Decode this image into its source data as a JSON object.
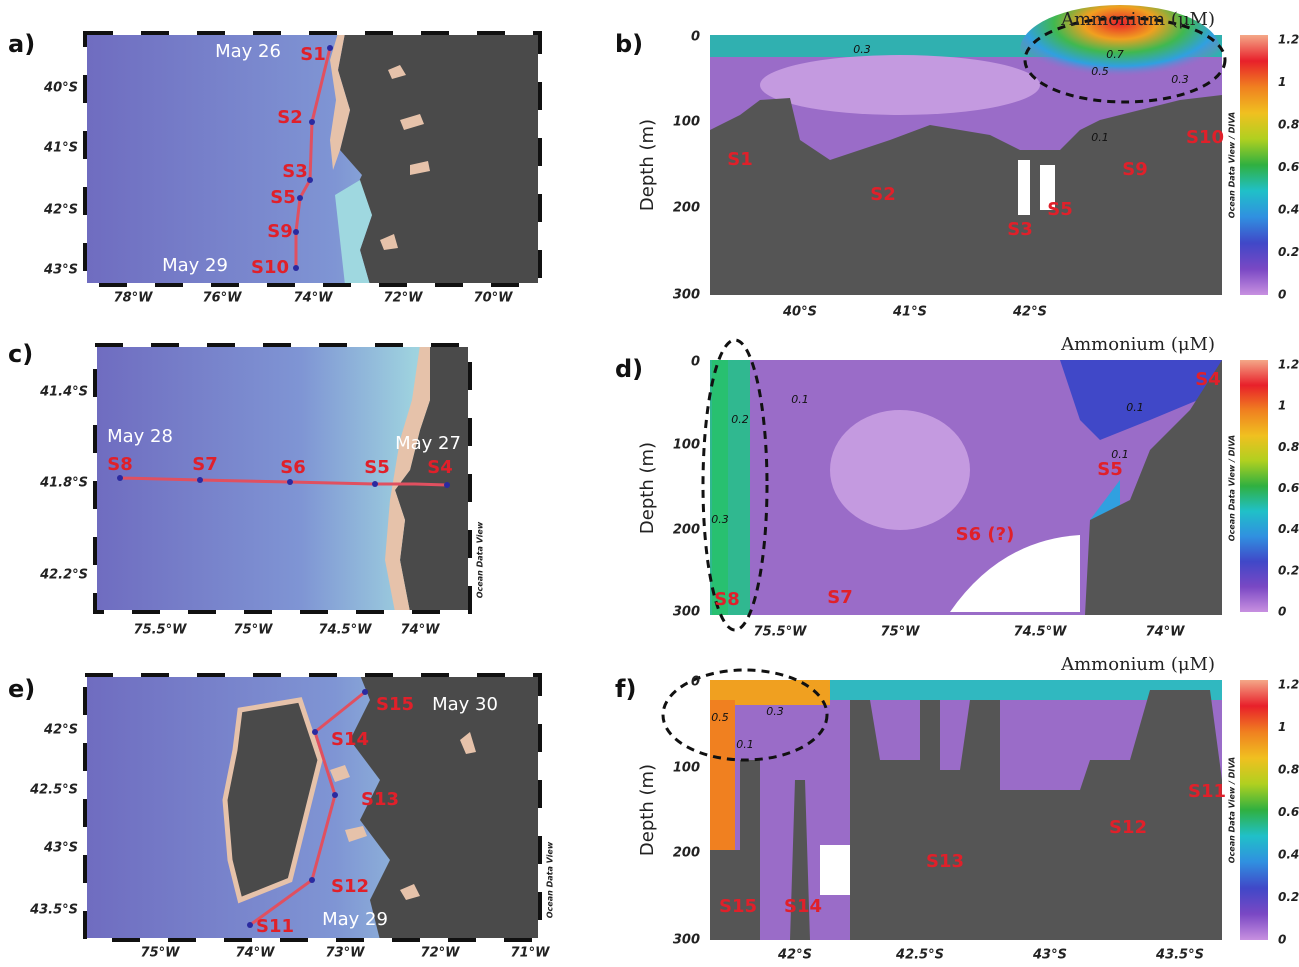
{
  "panels": [
    {
      "label": "a)",
      "yticks": [
        "40°S",
        "41°S",
        "42°S",
        "43°S"
      ],
      "xticks": [
        "78°W",
        "76°W",
        "74°W",
        "72°W",
        "70°W"
      ],
      "stations": [
        "S1",
        "S2",
        "S3",
        "S5",
        "S9",
        "S10"
      ],
      "dates": [
        "May 26",
        "May 29"
      ]
    },
    {
      "label": "b)",
      "title": "Ammonium (μM)",
      "ylabel": "Depth (m)",
      "yticks": [
        "0",
        "100",
        "200",
        "300"
      ],
      "xticks": [
        "40°S",
        "41°S",
        "42°S"
      ],
      "colorbar_ticks": [
        "1.2",
        "1",
        "0.8",
        "0.6",
        "0.4",
        "0.2",
        "0"
      ],
      "contour_labels": [
        "0.3",
        "0.7",
        "0.5",
        "0.3",
        "0.1"
      ],
      "stations": [
        "S1",
        "S2",
        "S3",
        "S5",
        "S9",
        "S10"
      ],
      "watermark": "Ocean Data View / DIVA"
    },
    {
      "label": "c)",
      "yticks": [
        "41.4°S",
        "41.8°S",
        "42.2°S"
      ],
      "xticks": [
        "75.5°W",
        "75°W",
        "74.5°W",
        "74°W"
      ],
      "stations": [
        "S8",
        "S7",
        "S6",
        "S5",
        "S4"
      ],
      "dates": [
        "May 28",
        "May 27"
      ],
      "watermark": "Ocean Data View"
    },
    {
      "label": "d)",
      "title": "Ammonium (μM)",
      "ylabel": "Depth (m)",
      "yticks": [
        "0",
        "100",
        "200",
        "300"
      ],
      "xticks": [
        "75.5°W",
        "75°W",
        "74.5°W",
        "74°W"
      ],
      "colorbar_ticks": [
        "1.2",
        "1",
        "0.8",
        "0.6",
        "0.4",
        "0.2",
        "0"
      ],
      "contour_labels": [
        "0.2",
        "0.1",
        "0.1",
        "0.1",
        "0.3"
      ],
      "stations": [
        "S8",
        "S7",
        "S6 (?)",
        "S5",
        "S4"
      ],
      "watermark": "Ocean Data View / DIVA"
    },
    {
      "label": "e)",
      "yticks": [
        "42°S",
        "42.5°S",
        "43°S",
        "43.5°S"
      ],
      "xticks": [
        "75°W",
        "74°W",
        "73°W",
        "72°W",
        "71°W"
      ],
      "stations": [
        "S15",
        "S14",
        "S13",
        "S12",
        "S11"
      ],
      "dates": [
        "May 30",
        "May 29"
      ],
      "watermark": "Ocean Data View"
    },
    {
      "label": "f)",
      "title": "Ammonium (μM)",
      "ylabel": "Depth (m)",
      "yticks": [
        "0",
        "100",
        "200",
        "300"
      ],
      "xticks": [
        "42°S",
        "42.5°S",
        "43°S",
        "43.5°S"
      ],
      "colorbar_ticks": [
        "1.2",
        "1",
        "0.8",
        "0.6",
        "0.4",
        "0.2",
        "0"
      ],
      "contour_labels": [
        "0.5",
        "0.3",
        "0.1"
      ],
      "stations": [
        "S15",
        "S14",
        "S13",
        "S12",
        "S11"
      ],
      "watermark": "Ocean Data View / DIVA"
    }
  ]
}
